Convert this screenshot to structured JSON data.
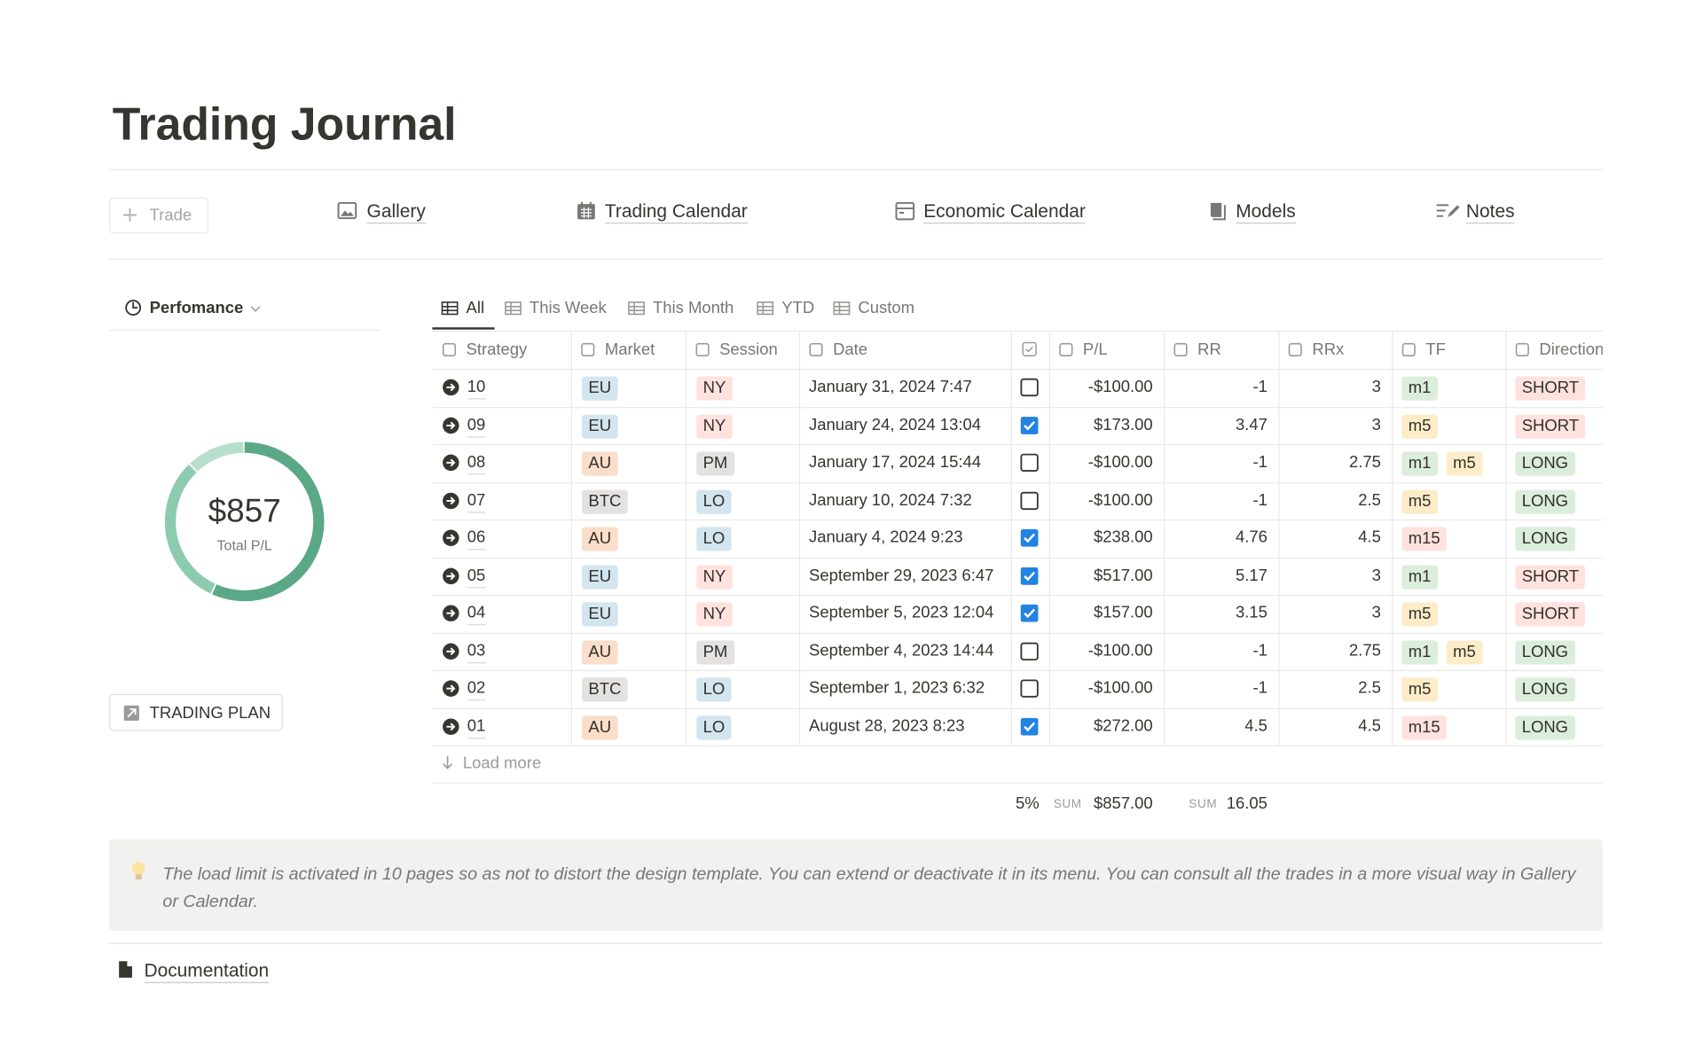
{
  "title": "Trading Journal",
  "new_button": "Trade",
  "nav": [
    "Gallery",
    "Trading Calendar",
    "Economic Calendar",
    "Models",
    "Notes"
  ],
  "sidebar": {
    "view": "Perfomance",
    "chart": {
      "type": "donut",
      "center_value": "$857",
      "center_label": "Total P/L",
      "values": [
        57,
        31,
        12
      ],
      "colors": [
        "#5aa886",
        "#8ccbb0",
        "#b8dece"
      ]
    },
    "button": "TRADING PLAN"
  },
  "tabs": [
    "All",
    "This Week",
    "This Month",
    "YTD",
    "Custom"
  ],
  "table": {
    "columns": [
      "Strategy",
      "Market",
      "Session",
      "Date",
      "P/L",
      "RR",
      "RRx",
      "TF",
      "Direction"
    ],
    "rows": [
      {
        "strategy": "10",
        "market": "EU",
        "session": "NY",
        "date": "January 31, 2024 7:47",
        "done": false,
        "pl": "-$100.00",
        "rr": -1,
        "rrx": 3,
        "tf": [
          "m1"
        ],
        "direction": "SHORT"
      },
      {
        "strategy": "09",
        "market": "EU",
        "session": "NY",
        "date": "January 24, 2024 13:04",
        "done": true,
        "pl": "$173.00",
        "rr": 3.47,
        "rrx": 3,
        "tf": [
          "m5"
        ],
        "direction": "SHORT"
      },
      {
        "strategy": "08",
        "market": "AU",
        "session": "PM",
        "date": "January 17, 2024 15:44",
        "done": false,
        "pl": "-$100.00",
        "rr": -1,
        "rrx": 2.75,
        "tf": [
          "m1",
          "m5"
        ],
        "direction": "LONG"
      },
      {
        "strategy": "07",
        "market": "BTC",
        "session": "LO",
        "date": "January 10, 2024 7:32",
        "done": false,
        "pl": "-$100.00",
        "rr": -1,
        "rrx": 2.5,
        "tf": [
          "m5"
        ],
        "direction": "LONG"
      },
      {
        "strategy": "06",
        "market": "AU",
        "session": "LO",
        "date": "January 4, 2024 9:23",
        "done": true,
        "pl": "$238.00",
        "rr": 4.76,
        "rrx": 4.5,
        "tf": [
          "m15"
        ],
        "direction": "LONG"
      },
      {
        "strategy": "05",
        "market": "EU",
        "session": "NY",
        "date": "September 29, 2023 6:47",
        "done": true,
        "pl": "$517.00",
        "rr": 5.17,
        "rrx": 3,
        "tf": [
          "m1"
        ],
        "direction": "SHORT"
      },
      {
        "strategy": "04",
        "market": "EU",
        "session": "NY",
        "date": "September 5, 2023 12:04",
        "done": true,
        "pl": "$157.00",
        "rr": 3.15,
        "rrx": 3,
        "tf": [
          "m5"
        ],
        "direction": "SHORT"
      },
      {
        "strategy": "03",
        "market": "AU",
        "session": "PM",
        "date": "September 4, 2023 14:44",
        "done": false,
        "pl": "-$100.00",
        "rr": -1,
        "rrx": 2.75,
        "tf": [
          "m1",
          "m5"
        ],
        "direction": "LONG"
      },
      {
        "strategy": "02",
        "market": "BTC",
        "session": "LO",
        "date": "September 1, 2023 6:32",
        "done": false,
        "pl": "-$100.00",
        "rr": -1,
        "rrx": 2.5,
        "tf": [
          "m5"
        ],
        "direction": "LONG"
      },
      {
        "strategy": "01",
        "market": "AU",
        "session": "LO",
        "date": "August 28, 2023 8:23",
        "done": true,
        "pl": "$272.00",
        "rr": 4.5,
        "rrx": 4.5,
        "tf": [
          "m15"
        ],
        "direction": "LONG"
      }
    ],
    "load_more": "Load more",
    "footer": {
      "percent": "5%",
      "sums": [
        {
          "label": "SUM",
          "value": "$857.00"
        },
        {
          "label": "SUM",
          "value": "16.05"
        }
      ]
    },
    "tag_colors": {
      "EU": "#d3e5ef",
      "NY": "#ffe2dd",
      "AU": "#fadec9",
      "BTC": "#e3e2e0",
      "PM": "#e3e2e0",
      "LO": "#d3e5ef",
      "m1": "#dbeddb",
      "m5": "#fdecc8",
      "m15": "#ffe2dd",
      "SHORT": "#ffe2dd",
      "LONG": "#dbeddb"
    }
  },
  "callout": "The load limit is activated in 10 pages so as not to distort the design template. You can extend or deactivate it in its menu. You can consult all the trades in a more visual way in Gallery or Calendar.",
  "documentation": "Documentation"
}
